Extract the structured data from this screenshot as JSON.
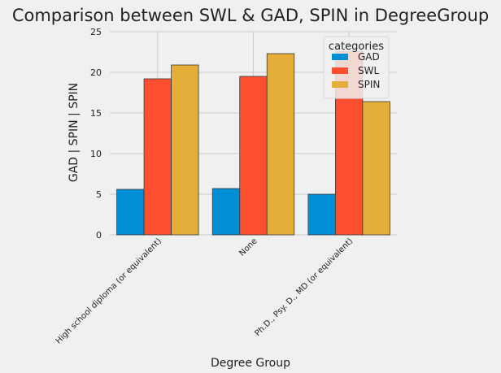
{
  "chart_data": {
    "type": "bar",
    "title": "Comparison between SWL & GAD, SPIN in DegreeGroup",
    "xlabel": "Degree Group",
    "ylabel": "GAD | SPIN | SPIN",
    "categories": [
      "High school diploma (or equivalent)",
      "None",
      "Ph.D., Psy. D., MD (or equivalent)"
    ],
    "series": [
      {
        "name": "GAD",
        "values": [
          5.6,
          5.7,
          5.0
        ],
        "color": "#008fd5"
      },
      {
        "name": "SWL",
        "values": [
          19.2,
          19.5,
          22.6
        ],
        "color": "#fc4f30"
      },
      {
        "name": "SPIN",
        "values": [
          20.9,
          22.3,
          16.4
        ],
        "color": "#e5ae38"
      }
    ],
    "ylim": [
      0,
      25
    ],
    "yticks": [
      0,
      5,
      10,
      15,
      20,
      25
    ],
    "grid": true,
    "legend": {
      "title": "categories",
      "placement": "top-right"
    },
    "background": "#f0f0f0",
    "style": "fivethirtyeight"
  }
}
